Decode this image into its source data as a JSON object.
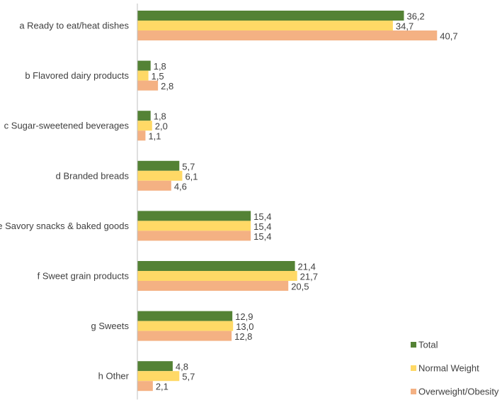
{
  "chart_data": {
    "type": "bar",
    "orientation": "horizontal",
    "title": "",
    "xlabel": "",
    "ylabel": "",
    "grid": false,
    "legend_position": "bottom-right",
    "xlim": [
      0,
      42
    ],
    "categories": [
      "a Ready to eat/heat dishes",
      "b Flavored dairy products",
      "c Sugar-sweetened beverages",
      "d Branded breads",
      "e Savory snacks & baked goods",
      "f Sweet grain products",
      "g Sweets",
      "h Other"
    ],
    "series": [
      {
        "name": "Total",
        "color": "#548235",
        "values": [
          36.2,
          1.8,
          1.8,
          5.7,
          15.4,
          21.4,
          12.9,
          4.8
        ],
        "labels": [
          "36,2",
          "1,8",
          "1,8",
          "5,7",
          "15,4",
          "21,4",
          "12,9",
          "4,8"
        ]
      },
      {
        "name": "Normal Weight",
        "color": "#FFD966",
        "values": [
          34.7,
          1.5,
          2.0,
          6.1,
          15.4,
          21.7,
          13.0,
          5.7
        ],
        "labels": [
          "34,7",
          "1,5",
          "2,0",
          "6,1",
          "15,4",
          "21,7",
          "13,0",
          "5,7"
        ]
      },
      {
        "name": "Overweight/Obesity",
        "color": "#F4B183",
        "values": [
          40.7,
          2.8,
          1.1,
          4.6,
          15.4,
          20.5,
          12.8,
          2.1
        ],
        "labels": [
          "40,7",
          "2,8",
          "1,1",
          "4,6",
          "15,4",
          "20,5",
          "12,8",
          "2,1"
        ]
      }
    ]
  }
}
